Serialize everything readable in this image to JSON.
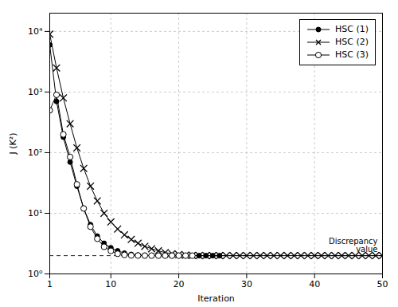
{
  "chart_data": {
    "type": "line",
    "xlabel": "Iteration",
    "ylabel": "J (K²)",
    "log": "y",
    "xlim": [
      1,
      50
    ],
    "ylim": [
      1.0,
      20000
    ],
    "xticks": [
      1,
      10,
      20,
      30,
      40,
      50
    ],
    "yticks": [
      {
        "value": 1,
        "label": "10⁰"
      },
      {
        "value": 10,
        "label": "10¹"
      },
      {
        "value": 100,
        "label": "10²"
      },
      {
        "value": 1000,
        "label": "10³"
      },
      {
        "value": 10000,
        "label": "10⁴"
      }
    ],
    "grid": true,
    "legend": "upper right",
    "annotations": [
      {
        "text": "Discrepancy\nvalue",
        "y": 2.0,
        "color": "black",
        "line_style": "dashed"
      }
    ],
    "series": [
      {
        "name": "HSC (1)",
        "color": "black",
        "marker": "filled_circle",
        "line_style": "solid",
        "x": [
          1,
          2,
          3,
          4,
          5,
          6,
          7,
          8,
          9,
          10,
          11,
          12,
          13,
          14,
          15,
          16,
          17,
          18,
          19,
          20,
          21,
          22,
          23,
          24,
          25,
          26
        ],
        "values": [
          6000,
          700,
          180,
          70,
          28,
          12,
          6.5,
          4.2,
          3.2,
          2.7,
          2.4,
          2.2,
          2.1,
          2.05,
          2.02,
          2.01,
          2.0,
          2.0,
          2.0,
          2.0,
          2.0,
          2.0,
          2.0,
          2.0,
          2.0,
          2.0
        ]
      },
      {
        "name": "HSC (2)",
        "color": "black",
        "marker": "x",
        "line_style": "solid",
        "x": [
          1,
          2,
          3,
          4,
          5,
          6,
          7,
          8,
          9,
          10,
          11,
          12,
          13,
          14,
          15,
          16,
          17,
          18,
          19,
          20,
          21,
          22,
          23,
          24,
          25,
          26,
          27,
          28,
          29,
          30,
          31,
          32,
          33,
          34,
          35,
          36,
          37,
          38,
          39,
          40,
          41,
          42,
          43,
          44,
          45,
          46,
          47,
          48,
          49,
          50
        ],
        "values": [
          9000,
          2500,
          800,
          300,
          120,
          55,
          28,
          16,
          10,
          7.2,
          5.5,
          4.4,
          3.7,
          3.2,
          2.85,
          2.6,
          2.4,
          2.25,
          2.15,
          2.08,
          2.04,
          2.02,
          2.01,
          2.005,
          2.003,
          2.002,
          2.001,
          2.001,
          2.001,
          2.001,
          2.001,
          2.001,
          2.001,
          2.001,
          2.001,
          2.001,
          2.001,
          2.001,
          2.001,
          2.001,
          2.001,
          2.001,
          2.001,
          2.001,
          2.001,
          2.001,
          2.001,
          2.001,
          2.001,
          2.001
        ]
      },
      {
        "name": "HSC (3)",
        "color": "black",
        "marker": "open_circle",
        "line_style": "solid",
        "x": [
          1,
          2,
          3,
          4,
          5,
          6,
          7,
          8,
          9,
          10,
          11,
          12,
          13,
          14,
          15,
          16,
          17,
          18,
          19,
          20,
          21,
          22
        ],
        "values": [
          500,
          900,
          200,
          85,
          30,
          12,
          6.0,
          3.8,
          2.8,
          2.4,
          2.15,
          2.06,
          2.02,
          2.01,
          2.005,
          2.003,
          2.002,
          2.001,
          2.001,
          2.001,
          2.001,
          2.001
        ]
      }
    ]
  }
}
